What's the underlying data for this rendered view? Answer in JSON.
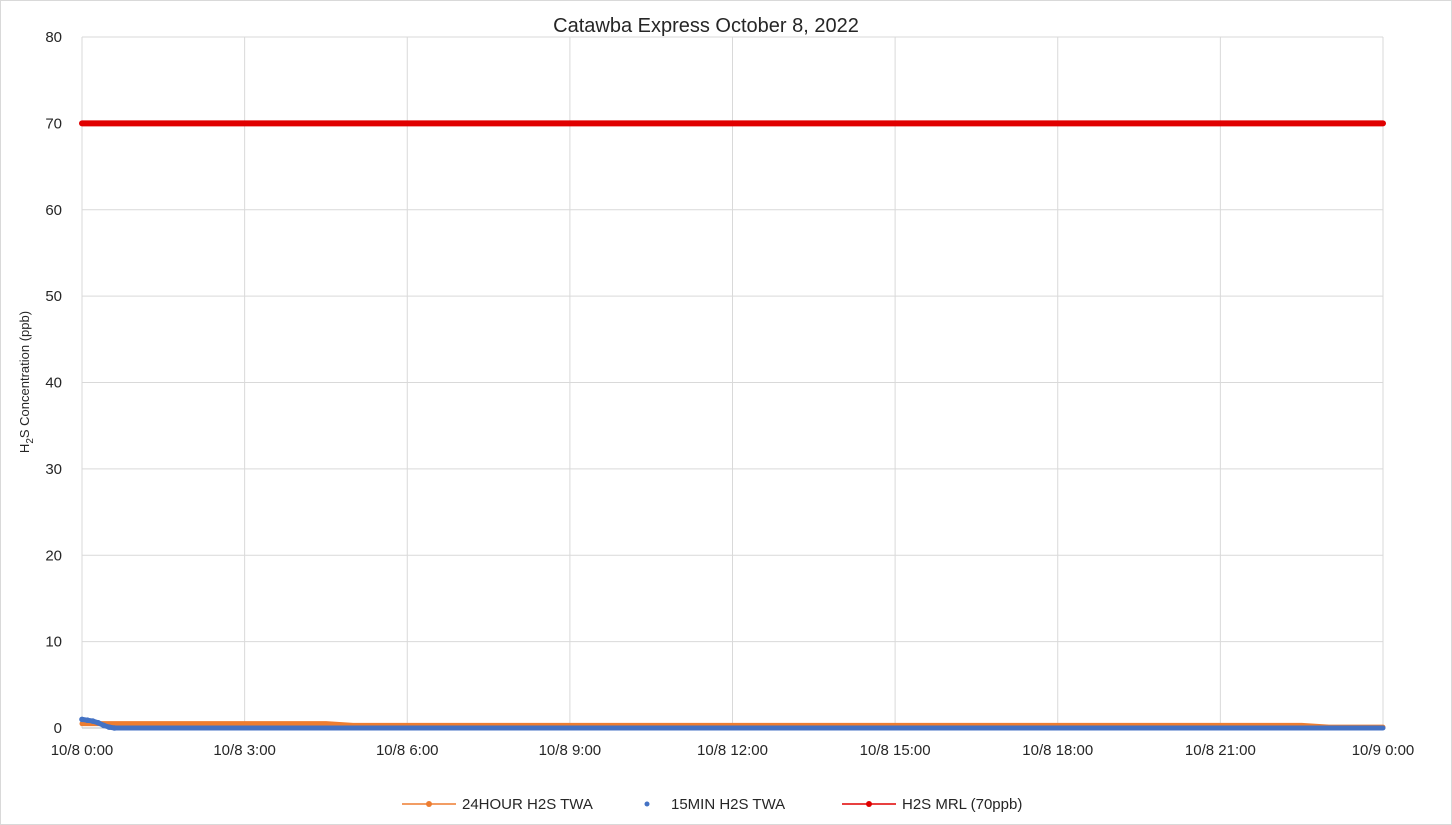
{
  "chart_data": {
    "type": "line",
    "title": "Catawba Express October 8, 2022",
    "xlabel": "",
    "ylabel_parts": [
      "H",
      "2",
      "S Concentration (ppb)"
    ],
    "ylim": [
      0,
      80
    ],
    "yticks": [
      0,
      10,
      20,
      30,
      40,
      50,
      60,
      70,
      80
    ],
    "xlim_hours": [
      0,
      24
    ],
    "xticks": [
      {
        "hour": 0,
        "label": "10/8 0:00"
      },
      {
        "hour": 3,
        "label": "10/8 3:00"
      },
      {
        "hour": 6,
        "label": "10/8 6:00"
      },
      {
        "hour": 9,
        "label": "10/8 9:00"
      },
      {
        "hour": 12,
        "label": "10/8 12:00"
      },
      {
        "hour": 15,
        "label": "10/8 15:00"
      },
      {
        "hour": 18,
        "label": "10/8 18:00"
      },
      {
        "hour": 21,
        "label": "10/8 21:00"
      },
      {
        "hour": 24,
        "label": "10/9 0:00"
      }
    ],
    "grid": true,
    "legend_position": "bottom",
    "series": [
      {
        "name": "24HOUR H2S TWA",
        "color": "#ED7D31",
        "style": "line-marker",
        "points": [
          [
            0,
            0.5
          ],
          [
            0.5,
            0.5
          ],
          [
            4.5,
            0.5
          ],
          [
            5.0,
            0.3
          ],
          [
            22.5,
            0.3
          ],
          [
            23.0,
            0.1
          ],
          [
            24,
            0.1
          ]
        ]
      },
      {
        "name": "15MIN H2S TWA",
        "color": "#4472C4",
        "style": "marker",
        "points": [
          [
            0,
            1.0
          ],
          [
            0.1,
            0.9
          ],
          [
            0.2,
            0.8
          ],
          [
            0.3,
            0.6
          ],
          [
            0.4,
            0.3
          ],
          [
            0.5,
            0.1
          ],
          [
            0.6,
            0
          ],
          [
            24,
            0
          ]
        ]
      },
      {
        "name": "H2S MRL (70ppb)",
        "color": "#E00000",
        "style": "line-marker",
        "points": [
          [
            0,
            70
          ],
          [
            24,
            70
          ]
        ]
      }
    ]
  }
}
